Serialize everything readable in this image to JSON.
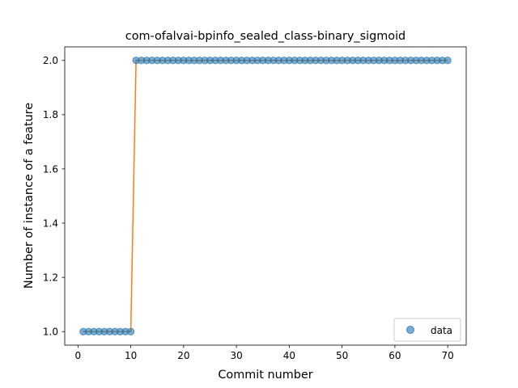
{
  "chart_data": {
    "type": "scatter",
    "title": "com-ofalvai-bpinfo_sealed_class-binary_sigmoid",
    "xlabel": "Commit number",
    "ylabel": "Number of instance of a feature",
    "xlim": [
      -2.5,
      73.5
    ],
    "ylim": [
      0.95,
      2.05
    ],
    "x_ticks": [
      0,
      10,
      20,
      30,
      40,
      50,
      60,
      70
    ],
    "y_ticks": [
      1.0,
      1.2,
      1.4,
      1.6,
      1.8,
      2.0
    ],
    "x_tick_labels": [
      "0",
      "10",
      "20",
      "30",
      "40",
      "50",
      "60",
      "70"
    ],
    "y_tick_labels": [
      "1.0",
      "1.2",
      "1.4",
      "1.6",
      "1.8",
      "2.0"
    ],
    "grid": false,
    "legend_position": "lower-right",
    "series": [
      {
        "name": "data",
        "kind": "scatter",
        "color": "#1f77b4",
        "x": [
          1,
          2,
          3,
          4,
          5,
          6,
          7,
          8,
          9,
          10,
          11,
          12,
          13,
          14,
          15,
          16,
          17,
          18,
          19,
          20,
          21,
          22,
          23,
          24,
          25,
          26,
          27,
          28,
          29,
          30,
          31,
          32,
          33,
          34,
          35,
          36,
          37,
          38,
          39,
          40,
          41,
          42,
          43,
          44,
          45,
          46,
          47,
          48,
          49,
          50,
          51,
          52,
          53,
          54,
          55,
          56,
          57,
          58,
          59,
          60,
          61,
          62,
          63,
          64,
          65,
          66,
          67,
          68,
          69,
          70
        ],
        "y": [
          1,
          1,
          1,
          1,
          1,
          1,
          1,
          1,
          1,
          1,
          2,
          2,
          2,
          2,
          2,
          2,
          2,
          2,
          2,
          2,
          2,
          2,
          2,
          2,
          2,
          2,
          2,
          2,
          2,
          2,
          2,
          2,
          2,
          2,
          2,
          2,
          2,
          2,
          2,
          2,
          2,
          2,
          2,
          2,
          2,
          2,
          2,
          2,
          2,
          2,
          2,
          2,
          2,
          2,
          2,
          2,
          2,
          2,
          2,
          2,
          2,
          2,
          2,
          2,
          2,
          2,
          2,
          2,
          2,
          2
        ]
      },
      {
        "kind": "line",
        "color": "#ff7f0e",
        "x": [
          1,
          2,
          3,
          4,
          5,
          6,
          7,
          8,
          9,
          10,
          11,
          12,
          13,
          14,
          15,
          16,
          17,
          18,
          19,
          20,
          21,
          22,
          23,
          24,
          25,
          26,
          27,
          28,
          29,
          30,
          31,
          32,
          33,
          34,
          35,
          36,
          37,
          38,
          39,
          40,
          41,
          42,
          43,
          44,
          45,
          46,
          47,
          48,
          49,
          50,
          51,
          52,
          53,
          54,
          55,
          56,
          57,
          58,
          59,
          60,
          61,
          62,
          63,
          64,
          65,
          66,
          67,
          68,
          69,
          70
        ],
        "y": [
          1,
          1,
          1,
          1,
          1,
          1,
          1,
          1,
          1,
          1,
          2,
          2,
          2,
          2,
          2,
          2,
          2,
          2,
          2,
          2,
          2,
          2,
          2,
          2,
          2,
          2,
          2,
          2,
          2,
          2,
          2,
          2,
          2,
          2,
          2,
          2,
          2,
          2,
          2,
          2,
          2,
          2,
          2,
          2,
          2,
          2,
          2,
          2,
          2,
          2,
          2,
          2,
          2,
          2,
          2,
          2,
          2,
          2,
          2,
          2,
          2,
          2,
          2,
          2,
          2,
          2,
          2,
          2,
          2,
          2
        ]
      }
    ]
  }
}
